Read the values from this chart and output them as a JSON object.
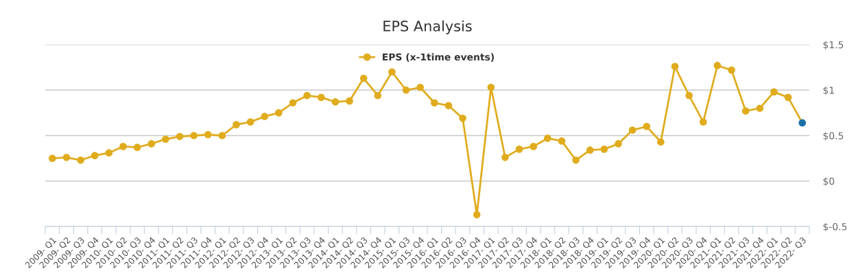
{
  "chart_data": {
    "type": "line",
    "title": "EPS Analysis",
    "categories": [
      "2009- Q1",
      "2009- Q2",
      "2009- Q3",
      "2009- Q4",
      "2010- Q1",
      "2010- Q2",
      "2010- Q3",
      "2010- Q4",
      "2011- Q1",
      "2011- Q2",
      "2011- Q3",
      "2011- Q4",
      "2012- Q1",
      "2012- Q2",
      "2012- Q3",
      "2012- Q4",
      "2013- Q1",
      "2013- Q2",
      "2013- Q3",
      "2013- Q4",
      "2014- Q1",
      "2014- Q2",
      "2014- Q3",
      "2014- Q4",
      "2015- Q1",
      "2015- Q3",
      "2015- Q4",
      "2016- Q1",
      "2016- Q2",
      "2016- Q3",
      "2016- Q4",
      "2017- Q1",
      "2017- Q2",
      "2017- Q3",
      "2017- Q4",
      "2018- Q1",
      "2018- Q2",
      "2018- Q3",
      "2018- Q4",
      "2019- Q1",
      "2019- Q2",
      "2019- Q3",
      "2019- Q4",
      "2020- Q1",
      "2020- Q2",
      "2020- Q3",
      "2020- Q4",
      "2021- Q1",
      "2021- Q2",
      "2021- Q3",
      "2021- Q4",
      "2022- Q1",
      "2022- Q2",
      "2022- Q3"
    ],
    "series": [
      {
        "name": "EPS (x-1time events)",
        "color": "#e0ac1e",
        "colors": [
          "#e0ac1e",
          "#e0ac1e",
          "#e0ac1e",
          "#e0ac1e",
          "#e0ac1e",
          "#e0ac1e",
          "#e0ac1e",
          "#e0ac1e",
          "#e0ac1e",
          "#e0ac1e",
          "#e0ac1e",
          "#e0ac1e",
          "#e0ac1e",
          "#e0ac1e",
          "#e0ac1e",
          "#e0ac1e",
          "#e0ac1e",
          "#e0ac1e",
          "#e0ac1e",
          "#e0ac1e",
          "#e0ac1e",
          "#e0ac1e",
          "#e0ac1e",
          "#e0ac1e",
          "#e0ac1e",
          "#e0ac1e",
          "#e0ac1e",
          "#e0ac1e",
          "#e0ac1e",
          "#e0ac1e",
          "#e0ac1e",
          "#e0ac1e",
          "#e0ac1e",
          "#e0ac1e",
          "#e0ac1e",
          "#e0ac1e",
          "#e0ac1e",
          "#e0ac1e",
          "#e0ac1e",
          "#e0ac1e",
          "#e0ac1e",
          "#e0ac1e",
          "#e0ac1e",
          "#e0ac1e",
          "#e0ac1e",
          "#e0ac1e",
          "#e0ac1e",
          "#e0ac1e",
          "#e0ac1e",
          "#e0ac1e",
          "#e0ac1e",
          "#e0ac1e",
          "#e0ac1e",
          "#1a6fa8"
        ],
        "values": [
          0.25,
          0.26,
          0.23,
          0.28,
          0.31,
          0.38,
          0.37,
          0.41,
          0.46,
          0.49,
          0.5,
          0.51,
          0.5,
          0.62,
          0.65,
          0.71,
          0.75,
          0.86,
          0.94,
          0.92,
          0.87,
          0.88,
          1.13,
          0.94,
          1.2,
          1.0,
          1.03,
          0.86,
          0.83,
          0.69,
          -0.37,
          1.03,
          0.26,
          0.35,
          0.38,
          0.47,
          0.44,
          0.23,
          0.34,
          0.35,
          0.41,
          0.56,
          0.6,
          0.43,
          1.26,
          0.94,
          0.65,
          1.27,
          1.22,
          0.77,
          0.8,
          0.98,
          0.92,
          0.64
        ]
      }
    ],
    "ylim": [
      -0.5,
      1.5
    ],
    "yticks": [
      {
        "value": 1.5,
        "label": "$1.5"
      },
      {
        "value": 1,
        "label": "$1"
      },
      {
        "value": 0.5,
        "label": "$0.5"
      },
      {
        "value": 0,
        "label": "$0"
      },
      {
        "value": -0.5,
        "label": "$-0.5"
      }
    ],
    "grid": "y",
    "legend": "top",
    "marker": "circle",
    "line_style": "solid"
  }
}
